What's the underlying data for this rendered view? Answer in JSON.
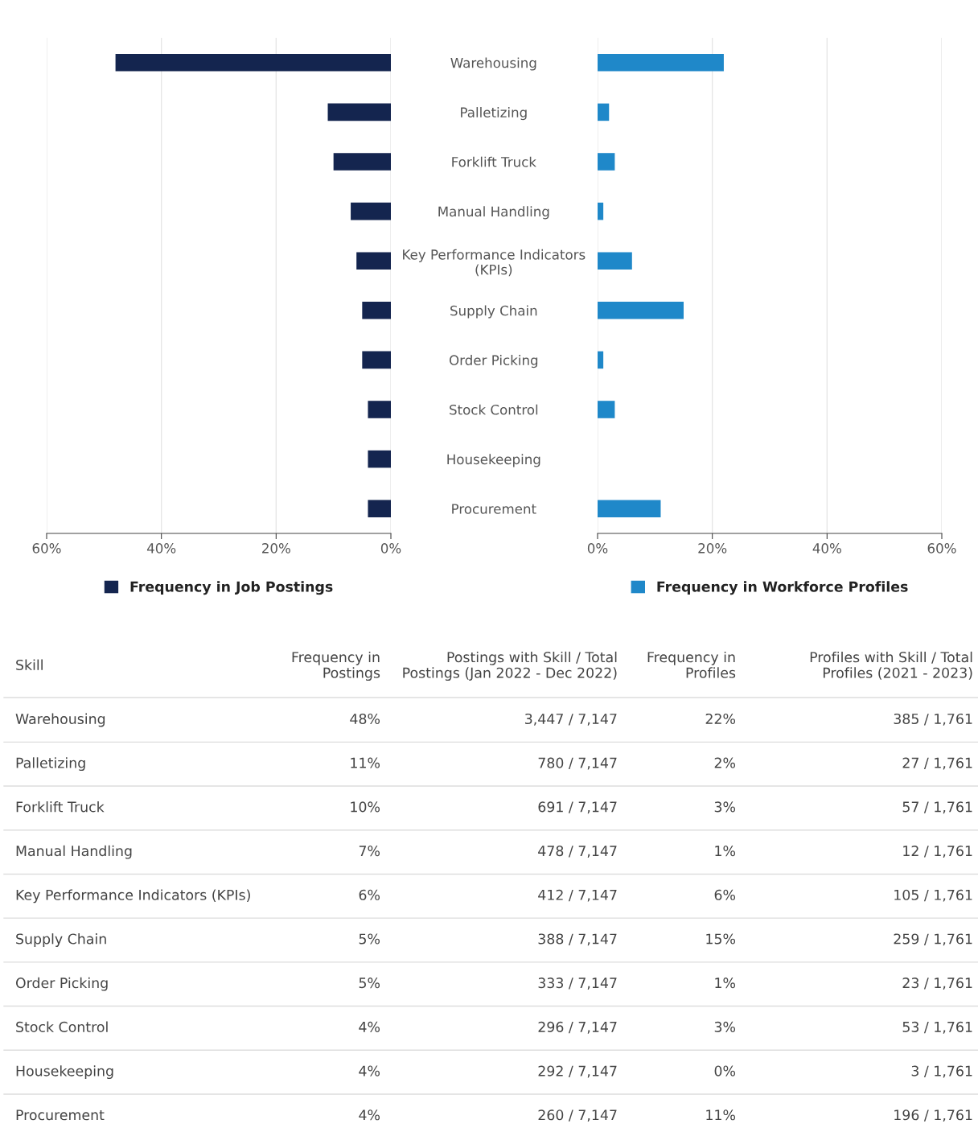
{
  "chart_data": [
    {
      "type": "bar",
      "orientation": "horizontal",
      "categories": [
        null,
        null,
        null,
        null,
        null,
        null,
        null,
        null,
        null,
        null
      ],
      "series": [
        {
          "name": "Frequency in Job Postings",
          "color": "#14254f",
          "values": [
            48,
            11,
            10,
            7,
            6,
            5,
            5,
            4,
            4,
            4
          ]
        }
      ],
      "xlim": [
        60,
        0
      ],
      "xticks": [
        {
          "value": 60,
          "label": "60%"
        },
        {
          "value": 40,
          "label": "40%"
        },
        {
          "value": 20,
          "label": "20%"
        },
        {
          "value": 0,
          "label": "0%"
        }
      ],
      "grid": "x",
      "legend": "bottom",
      "tick_labels": "x"
    },
    {
      "type": "bar",
      "orientation": "horizontal",
      "categories": [
        "Warehousing",
        "Palletizing",
        "Forklift Truck",
        "Manual Handling",
        "Key Performance Indicators\n(KPIs)",
        "Supply Chain",
        "Order Picking",
        "Stock Control",
        "Housekeeping",
        "Procurement"
      ],
      "series": [
        {
          "name": "Frequency in Workforce Profiles",
          "color": "#1f88c9",
          "values": [
            22,
            2,
            3,
            1,
            6,
            15,
            1,
            3,
            0,
            11
          ]
        }
      ],
      "xlim": [
        0,
        60
      ],
      "xticks": [
        {
          "value": 0,
          "label": "0%"
        },
        {
          "value": 20,
          "label": "20%"
        },
        {
          "value": 40,
          "label": "40%"
        },
        {
          "value": 60,
          "label": "60%"
        }
      ],
      "grid": "x",
      "legend": "bottom"
    },
    {
      "type": "other",
      "annotations": [
        "Skill",
        "Frequency in\nPostings",
        "Postings with Skill / Total\nPostings (Jan 2022 - Dec 2022)",
        "Frequency in\nProfiles",
        "Profiles with Skill / Total\nProfiles (2021 - 2023)",
        "Warehousing",
        "48%",
        "3,447 / 7,147",
        "22%",
        "385 / 1,761",
        "Palletizing",
        "11%",
        "780 / 7,147",
        "2%",
        "27 / 1,761",
        "Forklift Truck",
        "10%",
        "691 / 7,147",
        "3%",
        "57 / 1,761",
        "Manual Handling",
        "7%",
        "478 / 7,147",
        "1%",
        "12 / 1,761",
        "Key Performance Indicators (KPIs)",
        "6%",
        "412 / 7,147",
        "6%",
        "105 / 1,761",
        "Supply Chain",
        "5%",
        "388 / 7,147",
        "15%",
        "259 / 1,761",
        "Order Picking",
        "5%",
        "333 / 7,147",
        "1%",
        "23 / 1,761",
        "Stock Control",
        "4%",
        "296 / 7,147",
        "3%",
        "53 / 1,761",
        "Housekeeping",
        "4%",
        "292 / 7,147",
        "0%",
        "3 / 1,761",
        "Procurement",
        "4%",
        "260 / 7,147",
        "11%",
        "196 / 1,761"
      ]
    }
  ]
}
